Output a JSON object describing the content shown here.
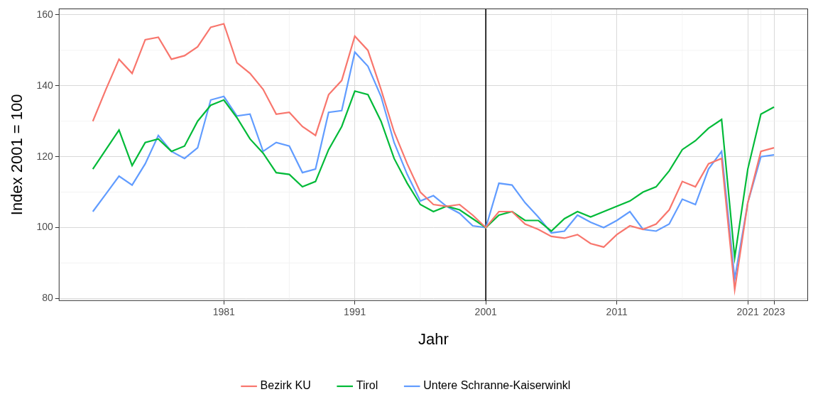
{
  "chart_data": {
    "type": "line",
    "x_label": "Jahr",
    "y_label": "Index 2001 = 100",
    "x": [
      1971,
      1972,
      1973,
      1974,
      1975,
      1976,
      1977,
      1978,
      1979,
      1980,
      1981,
      1982,
      1983,
      1984,
      1985,
      1986,
      1987,
      1988,
      1989,
      1990,
      1991,
      1992,
      1993,
      1994,
      1995,
      1996,
      1997,
      1998,
      1999,
      2000,
      2001,
      2002,
      2003,
      2004,
      2005,
      2006,
      2007,
      2008,
      2009,
      2010,
      2011,
      2012,
      2013,
      2014,
      2015,
      2016,
      2017,
      2018,
      2019,
      2020,
      2021,
      2022,
      2023
    ],
    "series": [
      {
        "name": "Bezirk KU",
        "color": "#F8766D",
        "values": [
          130,
          139,
          147.5,
          143.5,
          153,
          153.7,
          147.5,
          148.5,
          151,
          156.5,
          157.5,
          146.5,
          143.5,
          139,
          132,
          132.5,
          128.5,
          126,
          137.5,
          141.5,
          154,
          150,
          139,
          127,
          118,
          110,
          106.5,
          106,
          106.5,
          103.5,
          100,
          104.5,
          104.5,
          101,
          99.5,
          97.5,
          97,
          98,
          95.5,
          94.5,
          98,
          100.5,
          99.5,
          101,
          105,
          113,
          111.5,
          118,
          119.5,
          82.5,
          107,
          121.5,
          122.5
        ]
      },
      {
        "name": "Tirol",
        "color": "#00BA38",
        "values": [
          116.5,
          122,
          127.5,
          117.5,
          124,
          125,
          121.5,
          123,
          130,
          134.5,
          136,
          131,
          125,
          121,
          115.5,
          115,
          111.5,
          113,
          122,
          128.5,
          138.5,
          137.5,
          130,
          119.5,
          112.5,
          106.5,
          104.5,
          106,
          105,
          102.5,
          100,
          103.5,
          104.5,
          102,
          102,
          99,
          102.5,
          104.5,
          103,
          104.5,
          106,
          107.5,
          110,
          111.5,
          116,
          122,
          124.5,
          128,
          130.5,
          91.5,
          116.5,
          132,
          134
        ]
      },
      {
        "name": "Untere Schranne-Kaiserwinkl",
        "color": "#619CFF",
        "values": [
          104.5,
          109.5,
          114.5,
          112,
          118,
          126,
          121.5,
          119.5,
          122.5,
          136,
          137,
          131.5,
          132,
          121.5,
          124,
          123,
          115.5,
          116.5,
          132.5,
          133,
          149.5,
          145.5,
          137,
          124,
          115,
          107.5,
          109,
          106,
          104,
          100.5,
          100,
          112.5,
          112,
          107,
          103,
          98.5,
          99,
          103.5,
          101.5,
          100,
          102,
          104.5,
          99.5,
          99,
          101,
          108,
          106.5,
          116.5,
          121.5,
          85.5,
          107,
          120,
          120.5
        ]
      }
    ],
    "xlim": [
      1968.4,
      2025.6
    ],
    "ylim": [
      79.3,
      161.8
    ],
    "xticks": [
      1981,
      1991,
      2001,
      2011,
      2021,
      2023
    ],
    "yticks": [
      80,
      100,
      120,
      140,
      160
    ],
    "reference_line_x": 2001,
    "grid": true,
    "legend": "bottom"
  }
}
